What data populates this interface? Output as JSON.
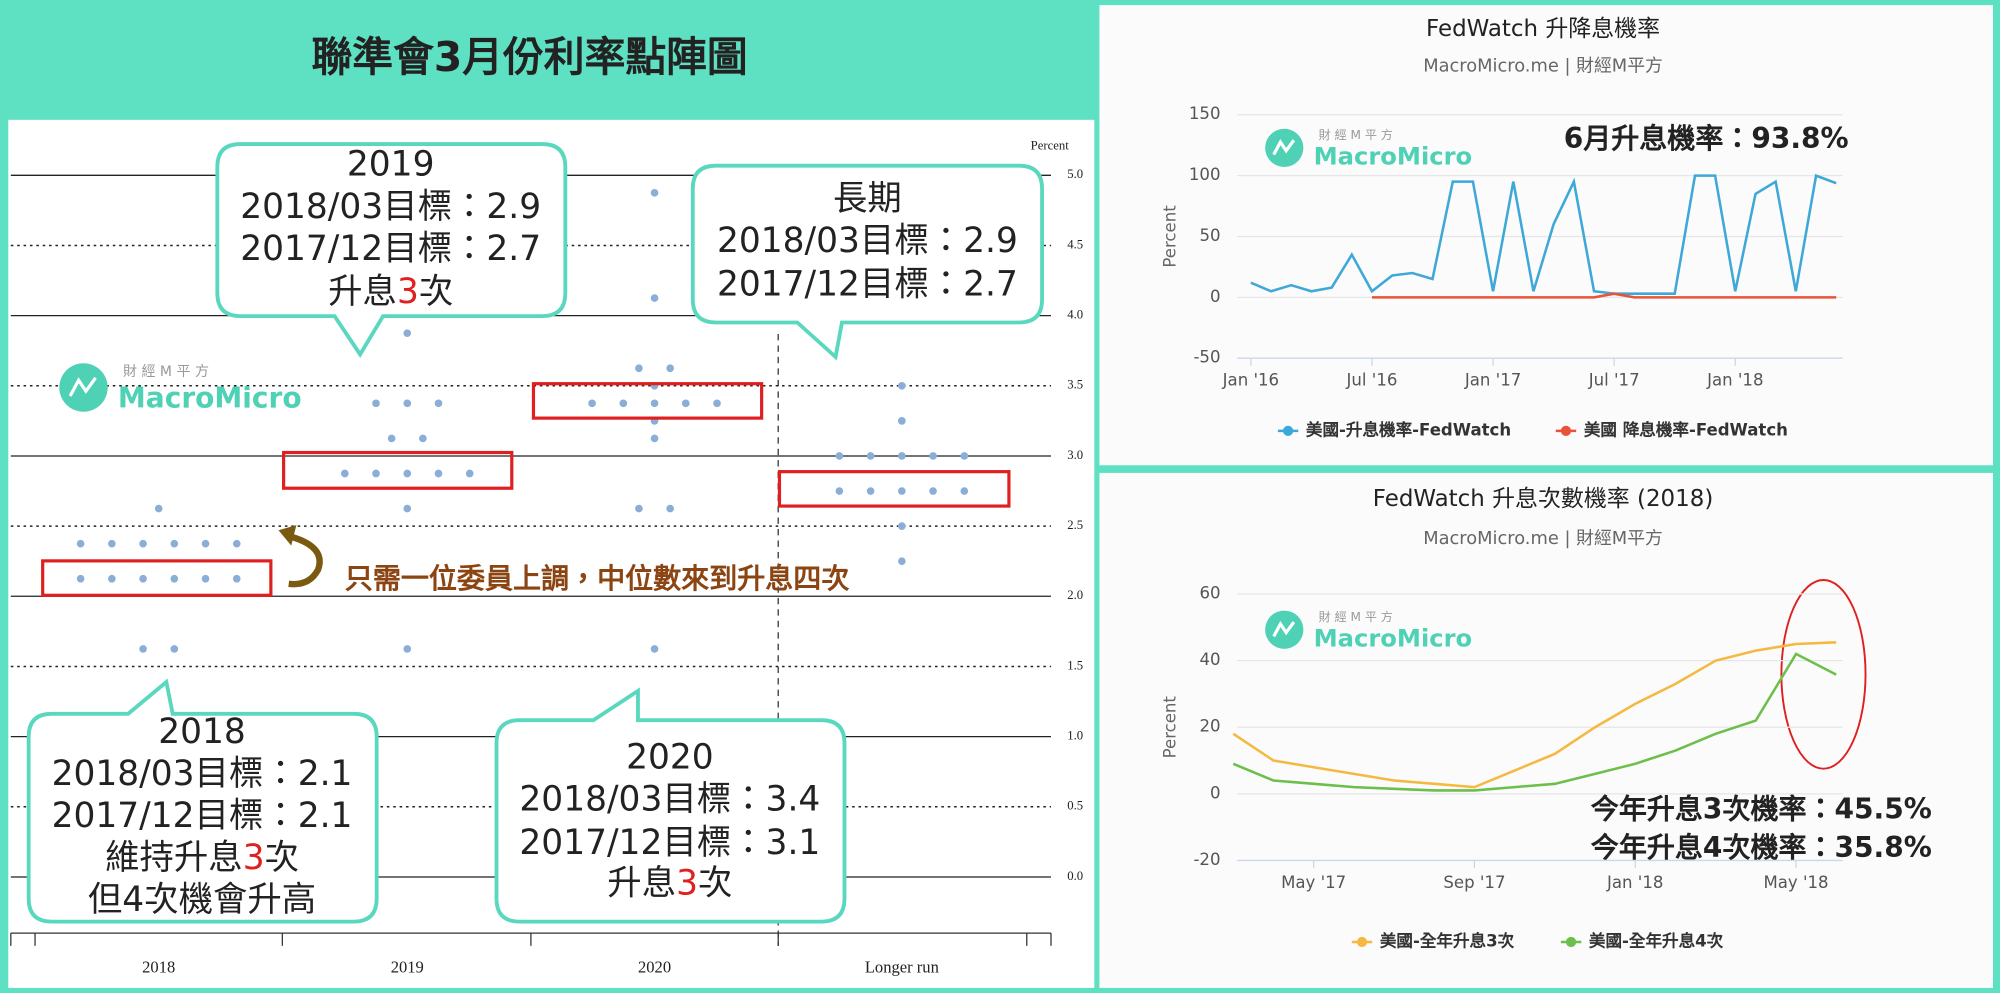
{
  "chart_data": [
    {
      "type": "dot",
      "title": "聯準會3月份利率點陣圖",
      "ylabel": "Percent",
      "categories": [
        "2018",
        "2019",
        "2020",
        "Longer run"
      ],
      "values": [
        [
          2.375,
          2.375,
          2.375,
          2.375,
          2.375,
          2.375,
          2.125,
          2.125,
          2.125,
          2.125,
          2.125,
          2.125,
          2.625,
          1.625,
          1.625
        ],
        [
          3.875,
          3.375,
          3.375,
          3.375,
          3.125,
          3.125,
          2.875,
          2.875,
          2.875,
          2.875,
          2.875,
          2.625,
          1.625
        ],
        [
          4.875,
          4.125,
          3.625,
          3.625,
          3.5,
          3.375,
          3.375,
          3.375,
          3.375,
          3.375,
          3.25,
          3.125,
          2.625,
          2.625,
          1.625
        ],
        [
          3.5,
          3.25,
          3.0,
          3.0,
          3.0,
          3.0,
          3.0,
          2.75,
          2.75,
          2.75,
          2.75,
          2.75,
          2.5,
          2.25
        ]
      ],
      "color": "#8aaed6",
      "ylim": [
        -0.4,
        5.25
      ],
      "yticks": [
        {
          "value": 0,
          "label": "0.0"
        },
        {
          "value": 0.5,
          "label": "0.5"
        },
        {
          "value": 1,
          "label": "1.0"
        },
        {
          "value": 1.5,
          "label": "1.5"
        },
        {
          "value": 2,
          "label": "2.0"
        },
        {
          "value": 2.5,
          "label": "2.5"
        },
        {
          "value": 3,
          "label": "3.0"
        },
        {
          "value": 3.5,
          "label": "3.5"
        },
        {
          "value": 4,
          "label": "4.0"
        },
        {
          "value": 4.5,
          "label": "4.5"
        },
        {
          "value": 5,
          "label": "5.0"
        }
      ],
      "callouts": [
        {
          "lines": [
            [
              "2019"
            ],
            [
              "2018/03目標：2.9"
            ],
            [
              "2017/12目標：2.7"
            ],
            [
              "升息",
              "3",
              "次"
            ]
          ]
        },
        {
          "lines": [
            [
              "長期"
            ],
            [
              "2018/03目標：2.9"
            ],
            [
              "2017/12目標：2.7"
            ]
          ]
        },
        {
          "lines": [
            [
              "2018"
            ],
            [
              "2018/03目標：2.1"
            ],
            [
              "2017/12目標：2.1"
            ],
            [
              "維持升息",
              "3",
              "次"
            ],
            [
              "但4次機會升高"
            ]
          ]
        },
        {
          "lines": [
            [
              "2020"
            ],
            [
              "2018/03目標：3.4"
            ],
            [
              "2017/12目標：3.1"
            ],
            [
              "升息",
              "3",
              "次"
            ]
          ]
        }
      ],
      "note": "只需一位委員上調，中位數來到升息四次"
    },
    {
      "type": "line",
      "title": "FedWatch 升降息機率",
      "subtitle": "MacroMicro.me | 財經M平方",
      "ylabel": "Percent",
      "x": [
        "2016-01",
        "2016-02",
        "2016-03",
        "2016-04",
        "2016-05",
        "2016-06",
        "2016-07",
        "2016-08",
        "2016-09",
        "2016-10",
        "2016-11",
        "2016-12",
        "2017-01",
        "2017-02",
        "2017-03",
        "2017-04",
        "2017-05",
        "2017-06",
        "2017-07",
        "2017-08",
        "2017-09",
        "2017-10",
        "2017-11",
        "2017-12",
        "2018-01",
        "2018-02",
        "2018-03",
        "2018-04",
        "2018-05",
        "2018-06"
      ],
      "series": [
        {
          "name": "美國-升息機率-FedWatch",
          "color": "#3ea8d8",
          "values": [
            12,
            5,
            10,
            5,
            8,
            35,
            5,
            18,
            20,
            15,
            95,
            95,
            5,
            95,
            5,
            60,
            95,
            5,
            3,
            3,
            3,
            3,
            100,
            100,
            5,
            85,
            95,
            5,
            100,
            93.8
          ]
        },
        {
          "name": "美國 降息機率-FedWatch",
          "color": "#e8533a",
          "values": [
            null,
            null,
            null,
            null,
            null,
            null,
            0,
            0,
            0,
            0,
            0,
            0,
            0,
            0,
            0,
            0,
            0,
            0,
            3,
            0,
            0,
            0,
            0,
            0,
            0,
            0,
            0,
            0,
            0,
            0
          ]
        }
      ],
      "xlim": [
        "2015-12",
        "2018-06"
      ],
      "xticks": [
        {
          "value": "2016-01",
          "label": "Jan '16"
        },
        {
          "value": "2016-07",
          "label": "Jul '16"
        },
        {
          "value": "2017-01",
          "label": "Jan '17"
        },
        {
          "value": "2017-07",
          "label": "Jul '17"
        },
        {
          "value": "2018-01",
          "label": "Jan '18"
        }
      ],
      "ylim": [
        -50,
        150
      ],
      "yticks": [
        -50,
        0,
        50,
        100,
        150
      ],
      "grid": true,
      "legend": "bottom",
      "annotation": "6月升息機率：93.8%"
    },
    {
      "type": "line",
      "title": "FedWatch 升息次數機率 (2018)",
      "subtitle": "MacroMicro.me | 財經M平方",
      "ylabel": "Percent",
      "x": [
        "2017-03",
        "2017-04",
        "2017-05",
        "2017-06",
        "2017-07",
        "2017-08",
        "2017-09",
        "2017-10",
        "2017-11",
        "2017-12",
        "2018-01",
        "2018-02",
        "2018-03",
        "2018-04",
        "2018-05",
        "2018-06"
      ],
      "series": [
        {
          "name": "美國-全年升息3次",
          "color": "#f5b942",
          "values": [
            18,
            10,
            8,
            6,
            4,
            3,
            2,
            7,
            12,
            20,
            27,
            33,
            40,
            43,
            45,
            45.5
          ]
        },
        {
          "name": "美國-全年升息4次",
          "color": "#6dbf4b",
          "values": [
            9,
            4,
            3,
            2,
            1.5,
            1,
            1,
            2,
            3,
            6,
            9,
            13,
            18,
            22,
            42,
            35.8
          ]
        }
      ],
      "xlim": [
        "2017-03",
        "2018-06"
      ],
      "xticks": [
        {
          "value": "2017-05",
          "label": "May '17"
        },
        {
          "value": "2017-09",
          "label": "Sep '17"
        },
        {
          "value": "2018-01",
          "label": "Jan '18"
        },
        {
          "value": "2018-05",
          "label": "May '18"
        }
      ],
      "ylim": [
        -20,
        60
      ],
      "yticks": [
        -20,
        0,
        20,
        40,
        60
      ],
      "grid": true,
      "legend": "bottom",
      "annotations": [
        "今年升息3次機率：45.5%",
        "今年升息4次機率：35.8%"
      ]
    }
  ],
  "watermark": {
    "cn": "財 經 M 平 方",
    "en": "MacroMicro"
  }
}
